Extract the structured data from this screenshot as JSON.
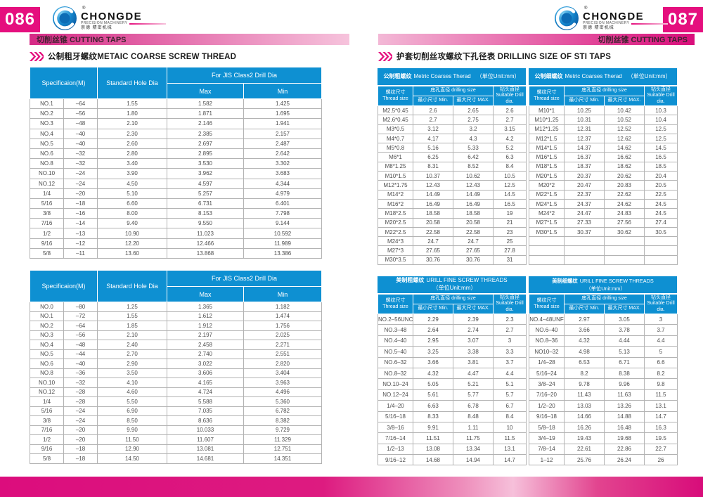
{
  "colors": {
    "accent": "#e50f7e",
    "table_blue": "#0e90d2"
  },
  "logo": {
    "reg": "®",
    "brand": "CHONGDE",
    "sub": "PRECISION MACHINERY",
    "cn": "崇德 精密机械"
  },
  "left": {
    "page_number": "086",
    "bar_text": "切削丝锥 CUTTING TAPS",
    "section_title": "公制粗牙螺纹METAIC COARSE SCREW THREAD",
    "table_headers": {
      "spec": "Specificaion(M)",
      "hole": "Standard Hole Dia",
      "jis": "For JIS Class2 Drill Dia",
      "max": "Max",
      "min": "Min"
    },
    "table1_rows": [
      [
        "NO.1",
        "–64",
        "1.55",
        "1.582",
        "1.425"
      ],
      [
        "NO.2",
        "–56",
        "1.80",
        "1.871",
        "1.695"
      ],
      [
        "NO.3",
        "–48",
        "2.10",
        "2.146",
        "1.941"
      ],
      [
        "NO.4",
        "–40",
        "2.30",
        "2.385",
        "2.157"
      ],
      [
        "NO.5",
        "–40",
        "2.60",
        "2.697",
        "2.487"
      ],
      [
        "NO.6",
        "–32",
        "2.80",
        "2.895",
        "2.642"
      ],
      [
        "NO.8",
        "–32",
        "3.40",
        "3.530",
        "3.302"
      ],
      [
        "NO.10",
        "–24",
        "3.90",
        "3.962",
        "3.683"
      ],
      [
        "NO.12",
        "–24",
        "4.50",
        "4.597",
        "4.344"
      ],
      [
        "1/4",
        "–20",
        "5.10",
        "5.257",
        "4.979"
      ],
      [
        "5/16",
        "–18",
        "6.60",
        "6.731",
        "6.401"
      ],
      [
        "3/8",
        "–16",
        "8.00",
        "8.153",
        "7.798"
      ],
      [
        "7/16",
        "–14",
        "9.40",
        "9.550",
        "9.144"
      ],
      [
        "1/2",
        "–13",
        "10.90",
        "11.023",
        "10.592"
      ],
      [
        "9/16",
        "–12",
        "12.20",
        "12.466",
        "11.989"
      ],
      [
        "5/8",
        "–11",
        "13.60",
        "13.868",
        "13.386"
      ]
    ],
    "table2_rows": [
      [
        "NO.0",
        "–80",
        "1.25",
        "1.365",
        "1.182"
      ],
      [
        "NO.1",
        "–72",
        "1.55",
        "1.612",
        "1.474"
      ],
      [
        "NO.2",
        "–64",
        "1.85",
        "1.912",
        "1.756"
      ],
      [
        "NO.3",
        "–56",
        "2.10",
        "2.197",
        "2.025"
      ],
      [
        "NO.4",
        "–48",
        "2.40",
        "2.458",
        "2.271"
      ],
      [
        "NO.5",
        "–44",
        "2.70",
        "2.740",
        "2.551"
      ],
      [
        "NO.6",
        "–40",
        "2.90",
        "3.022",
        "2.820"
      ],
      [
        "NO.8",
        "–36",
        "3.50",
        "3.606",
        "3.404"
      ],
      [
        "NO.10",
        "–32",
        "4.10",
        "4.165",
        "3.963"
      ],
      [
        "NO.12",
        "–28",
        "4.60",
        "4.724",
        "4.496"
      ],
      [
        "1/4",
        "–28",
        "5.50",
        "5.588",
        "5.360"
      ],
      [
        "5/16",
        "–24",
        "6.90",
        "7.035",
        "6.782"
      ],
      [
        "3/8",
        "–24",
        "8.50",
        "8.636",
        "8.382"
      ],
      [
        "7/16",
        "–20",
        "9.90",
        "10.033",
        "9.729"
      ],
      [
        "1/2",
        "–20",
        "11.50",
        "11.607",
        "11.329"
      ],
      [
        "9/16",
        "–18",
        "12.90",
        "13.081",
        "12.751"
      ],
      [
        "5/8",
        "–18",
        "14.50",
        "14.681",
        "14.351"
      ]
    ]
  },
  "right": {
    "page_number": "087",
    "bar_text": "切削丝锥 CUTTING TAPS",
    "section_title": "护套切削丝攻螺纹下孔径表  DRILLING SIZE OF STI TAPS",
    "col_headers": {
      "thread_cn": "螺纹尺寸",
      "thread_en": "Thread size",
      "drill": "底孔直径 drilling size",
      "min": "最小尺寸  Min.",
      "max": "最大尺寸  MAX.",
      "dia_cn": "钻头直径",
      "dia_en": "Suitable Drill dia."
    },
    "tables": [
      {
        "title_cn": "公制粗螺纹",
        "title_en": "Metric Coarses Therad",
        "unit": "（单位Unit:mm）",
        "rows": [
          [
            "M2.5*0.45",
            "2.6",
            "2.65",
            "2.6"
          ],
          [
            "M2.6*0.45",
            "2.7",
            "2.75",
            "2.7"
          ],
          [
            "M3*0.5",
            "3.12",
            "3.2",
            "3.15"
          ],
          [
            "M4*0.7",
            "4.17",
            "4.3",
            "4.2"
          ],
          [
            "M5*0.8",
            "5.16",
            "5.33",
            "5.2"
          ],
          [
            "M6*1",
            "6.25",
            "6.42",
            "6.3"
          ],
          [
            "M8*1.25",
            "8.31",
            "8.52",
            "8.4"
          ],
          [
            "M10*1.5",
            "10.37",
            "10.62",
            "10.5"
          ],
          [
            "M12*1.75",
            "12.43",
            "12.43",
            "12.5"
          ],
          [
            "M14*2",
            "14.49",
            "14.49",
            "14.5"
          ],
          [
            "M16*2",
            "16.49",
            "16.49",
            "16.5"
          ],
          [
            "M18*2.5",
            "18.58",
            "18.58",
            "19"
          ],
          [
            "M20*2.5",
            "20.58",
            "20.58",
            "21"
          ],
          [
            "M22*2.5",
            "22.58",
            "22.58",
            "23"
          ],
          [
            "M24*3",
            "24.7",
            "24.7",
            "25"
          ],
          [
            "M27*3",
            "27.65",
            "27.65",
            "27.8"
          ],
          [
            "M30*3.5",
            "30.76",
            "30.76",
            "31"
          ]
        ]
      },
      {
        "title_cn": "公制细螺纹",
        "title_en": "Metric Coarses Therad",
        "unit": "（单位Unit:mm）",
        "rows": [
          [
            "M10*1",
            "10.25",
            "10.42",
            "10.3"
          ],
          [
            "M10*1.25",
            "10.31",
            "10.52",
            "10.4"
          ],
          [
            "M12*1.25",
            "12.31",
            "12.52",
            "12.5"
          ],
          [
            "M12*1.5",
            "12.37",
            "12.62",
            "12.5"
          ],
          [
            "M14*1.5",
            "14.37",
            "14.62",
            "14.5"
          ],
          [
            "M16*1.5",
            "16.37",
            "16.62",
            "16.5"
          ],
          [
            "M18*1.5",
            "18.37",
            "18.62",
            "18.5"
          ],
          [
            "M20*1.5",
            "20.37",
            "20.62",
            "20.4"
          ],
          [
            "M20*2",
            "20.47",
            "20.83",
            "20.5"
          ],
          [
            "M22*1.5",
            "22.37",
            "22.62",
            "22.5"
          ],
          [
            "M24*1.5",
            "24.37",
            "24.62",
            "24.5"
          ],
          [
            "M24*2",
            "24.47",
            "24.83",
            "24.5"
          ],
          [
            "M27*1.5",
            "27.33",
            "27.56",
            "27.4"
          ],
          [
            "M30*1.5",
            "30.37",
            "30.62",
            "30.5"
          ],
          [
            "",
            "",
            "",
            ""
          ],
          [
            "",
            "",
            "",
            ""
          ],
          [
            "",
            "",
            "",
            ""
          ]
        ]
      },
      {
        "title_cn": "美制粗螺纹",
        "title_en": "URILL FINE SCREW THREADS",
        "unit": "（单位Unit:mm）",
        "rows": [
          [
            "NO.2–56UNC",
            "2.29",
            "2.39",
            "2.3"
          ],
          [
            "NO.3–48",
            "2.64",
            "2.74",
            "2.7"
          ],
          [
            "NO.4–40",
            "2.95",
            "3.07",
            "3"
          ],
          [
            "NO.5–40",
            "3.25",
            "3.38",
            "3.3"
          ],
          [
            "NO.6–32",
            "3.66",
            "3.81",
            "3.7"
          ],
          [
            "NO.8–32",
            "4.32",
            "4.47",
            "4.4"
          ],
          [
            "NO.10–24",
            "5.05",
            "5.21",
            "5.1"
          ],
          [
            "NO.12–24",
            "5.61",
            "5.77",
            "5.7"
          ],
          [
            "1/4–20",
            "6.63",
            "6.78",
            "6.7"
          ],
          [
            "5/16–18",
            "8.33",
            "8.48",
            "8.4"
          ],
          [
            "3/8–16",
            "9.91",
            "1.11",
            "10"
          ],
          [
            "7/16–14",
            "11.51",
            "11.75",
            "11.5"
          ],
          [
            "1/2–13",
            "13.08",
            "13.34",
            "13.1"
          ],
          [
            "9/16–12",
            "14.68",
            "14.94",
            "14.7"
          ]
        ]
      },
      {
        "title_cn": "美制细螺纹",
        "title_en": "URILL FINE SCREW THREADS",
        "unit": "（单位Unit:mm）",
        "rows": [
          [
            "NO.4–48UNF",
            "2.97",
            "3.05",
            "3"
          ],
          [
            "NO.6–40",
            "3.66",
            "3.78",
            "3.7"
          ],
          [
            "NO.8–36",
            "4.32",
            "4.44",
            "4.4"
          ],
          [
            "NO10–32",
            "4.98",
            "5.13",
            "5"
          ],
          [
            "1/4–28",
            "6.53",
            "6.71",
            "6.6"
          ],
          [
            "5/16–24",
            "8.2",
            "8.38",
            "8.2"
          ],
          [
            "3/8–24",
            "9.78",
            "9.96",
            "9.8"
          ],
          [
            "7/16–20",
            "11.43",
            "11.63",
            "11.5"
          ],
          [
            "1/2–20",
            "13.03",
            "13.26",
            "13.1"
          ],
          [
            "9/16–18",
            "14.66",
            "14.88",
            "14.7"
          ],
          [
            "5/8–18",
            "16.26",
            "16.48",
            "16.3"
          ],
          [
            "3/4–19",
            "19.43",
            "19.68",
            "19.5"
          ],
          [
            "7/8–14",
            "22.61",
            "22.86",
            "22.7"
          ],
          [
            "1–12",
            "25.76",
            "26.24",
            "26"
          ]
        ]
      }
    ]
  }
}
